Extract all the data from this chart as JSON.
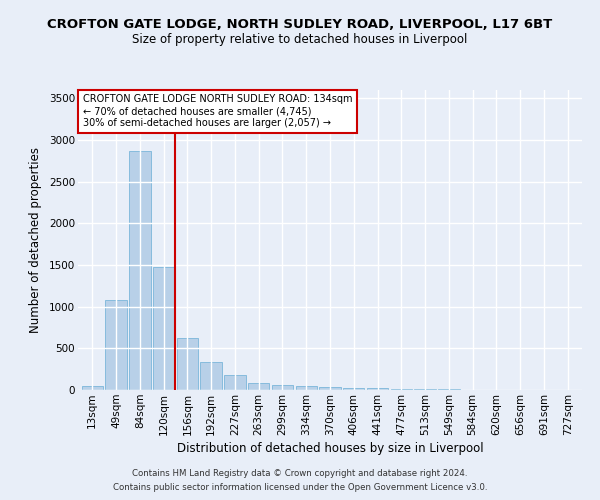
{
  "title": "CROFTON GATE LODGE, NORTH SUDLEY ROAD, LIVERPOOL, L17 6BT",
  "subtitle": "Size of property relative to detached houses in Liverpool",
  "xlabel": "Distribution of detached houses by size in Liverpool",
  "ylabel": "Number of detached properties",
  "categories": [
    "13sqm",
    "49sqm",
    "84sqm",
    "120sqm",
    "156sqm",
    "192sqm",
    "227sqm",
    "263sqm",
    "299sqm",
    "334sqm",
    "370sqm",
    "406sqm",
    "441sqm",
    "477sqm",
    "513sqm",
    "549sqm",
    "584sqm",
    "620sqm",
    "656sqm",
    "691sqm",
    "727sqm"
  ],
  "values": [
    50,
    1080,
    2870,
    1480,
    630,
    340,
    175,
    90,
    60,
    45,
    35,
    28,
    22,
    15,
    10,
    8,
    6,
    5,
    4,
    3,
    2
  ],
  "bar_color": "#b8d0e8",
  "bar_edgecolor": "#6aaed6",
  "vline_color": "#cc0000",
  "annotation_text": "CROFTON GATE LODGE NORTH SUDLEY ROAD: 134sqm\n← 70% of detached houses are smaller (4,745)\n30% of semi-detached houses are larger (2,057) →",
  "annotation_box_color": "#ffffff",
  "annotation_box_edgecolor": "#cc0000",
  "ylim": [
    0,
    3600
  ],
  "yticks": [
    0,
    500,
    1000,
    1500,
    2000,
    2500,
    3000,
    3500
  ],
  "background_color": "#e8eef8",
  "plot_bg_color": "#e8eef8",
  "grid_color": "#ffffff",
  "footer_line1": "Contains HM Land Registry data © Crown copyright and database right 2024.",
  "footer_line2": "Contains public sector information licensed under the Open Government Licence v3.0.",
  "title_fontsize": 9.5,
  "subtitle_fontsize": 8.5,
  "xlabel_fontsize": 8.5,
  "ylabel_fontsize": 8.5,
  "tick_fontsize": 7.5,
  "annot_fontsize": 7.0
}
